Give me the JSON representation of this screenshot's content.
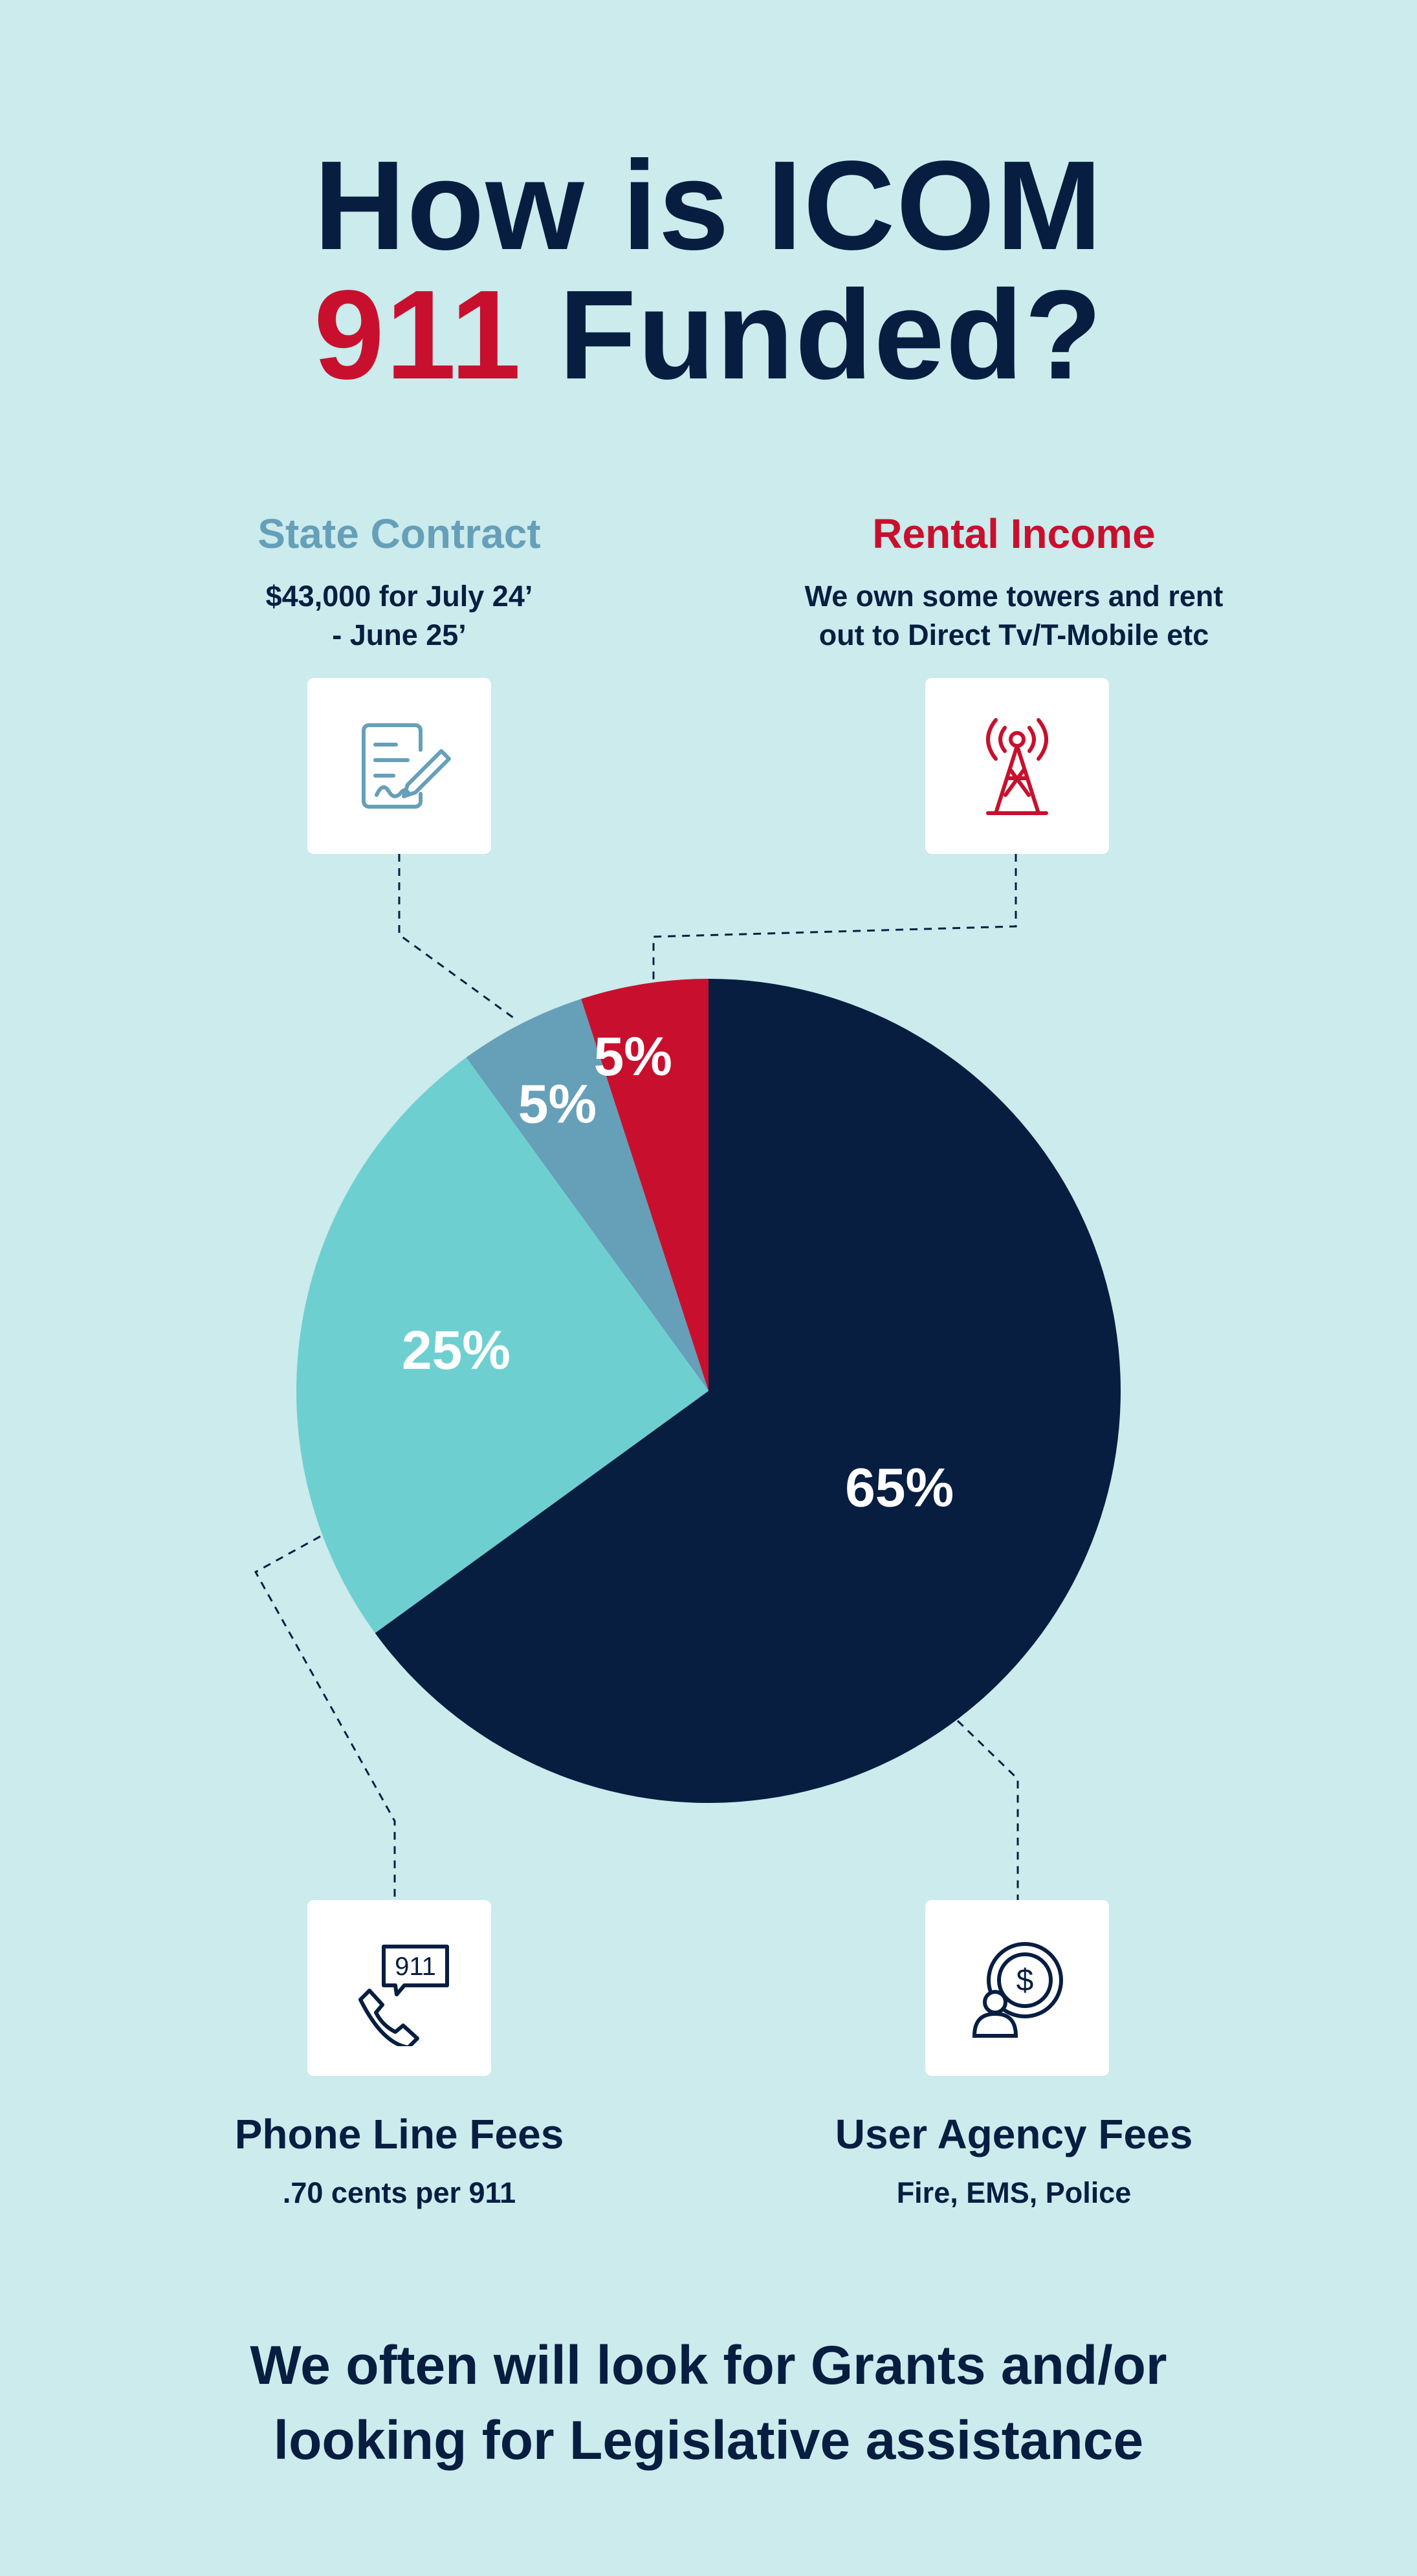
{
  "title": {
    "line1": "How is ICOM",
    "line2_highlight": "911",
    "line2_rest": " Funded?"
  },
  "colors": {
    "background": "#cbebed",
    "navy": "#071e41",
    "red": "#c8102e",
    "steel_blue": "#669fb8",
    "teal": "#6ecfd0"
  },
  "categories": {
    "state_contract": {
      "heading": "State Contract",
      "line1": "$43,000 for July 24’",
      "line2": "- June 25’",
      "icon": "contract-signing-icon"
    },
    "rental_income": {
      "heading": "Rental Income",
      "line1": "We own some towers and rent",
      "line2": "out to Direct Tv/T-Mobile etc",
      "icon": "radio-tower-icon"
    },
    "phone_line_fees": {
      "heading": "Phone Line Fees",
      "sub": ".70 cents per 911",
      "icon": "phone-911-icon",
      "icon_text": "911"
    },
    "user_agency_fees": {
      "heading": "User Agency Fees",
      "sub": "Fire, EMS, Police",
      "icon": "user-dollar-icon",
      "icon_text": "$"
    }
  },
  "chart_data": {
    "type": "pie",
    "slices": [
      {
        "label": "65%",
        "value": 65,
        "category": "User Agency Fees",
        "color": "#071e41"
      },
      {
        "label": "25%",
        "value": 25,
        "category": "Phone Line Fees",
        "color": "#6ecfd0"
      },
      {
        "label": "5%",
        "value": 5,
        "category": "State Contract",
        "color": "#669fb8"
      },
      {
        "label": "5%",
        "value": 5,
        "category": "Rental Income",
        "color": "#c8102e"
      }
    ]
  },
  "footer": {
    "line1": "We often will look for Grants and/or",
    "line2": "looking for Legislative assistance"
  }
}
